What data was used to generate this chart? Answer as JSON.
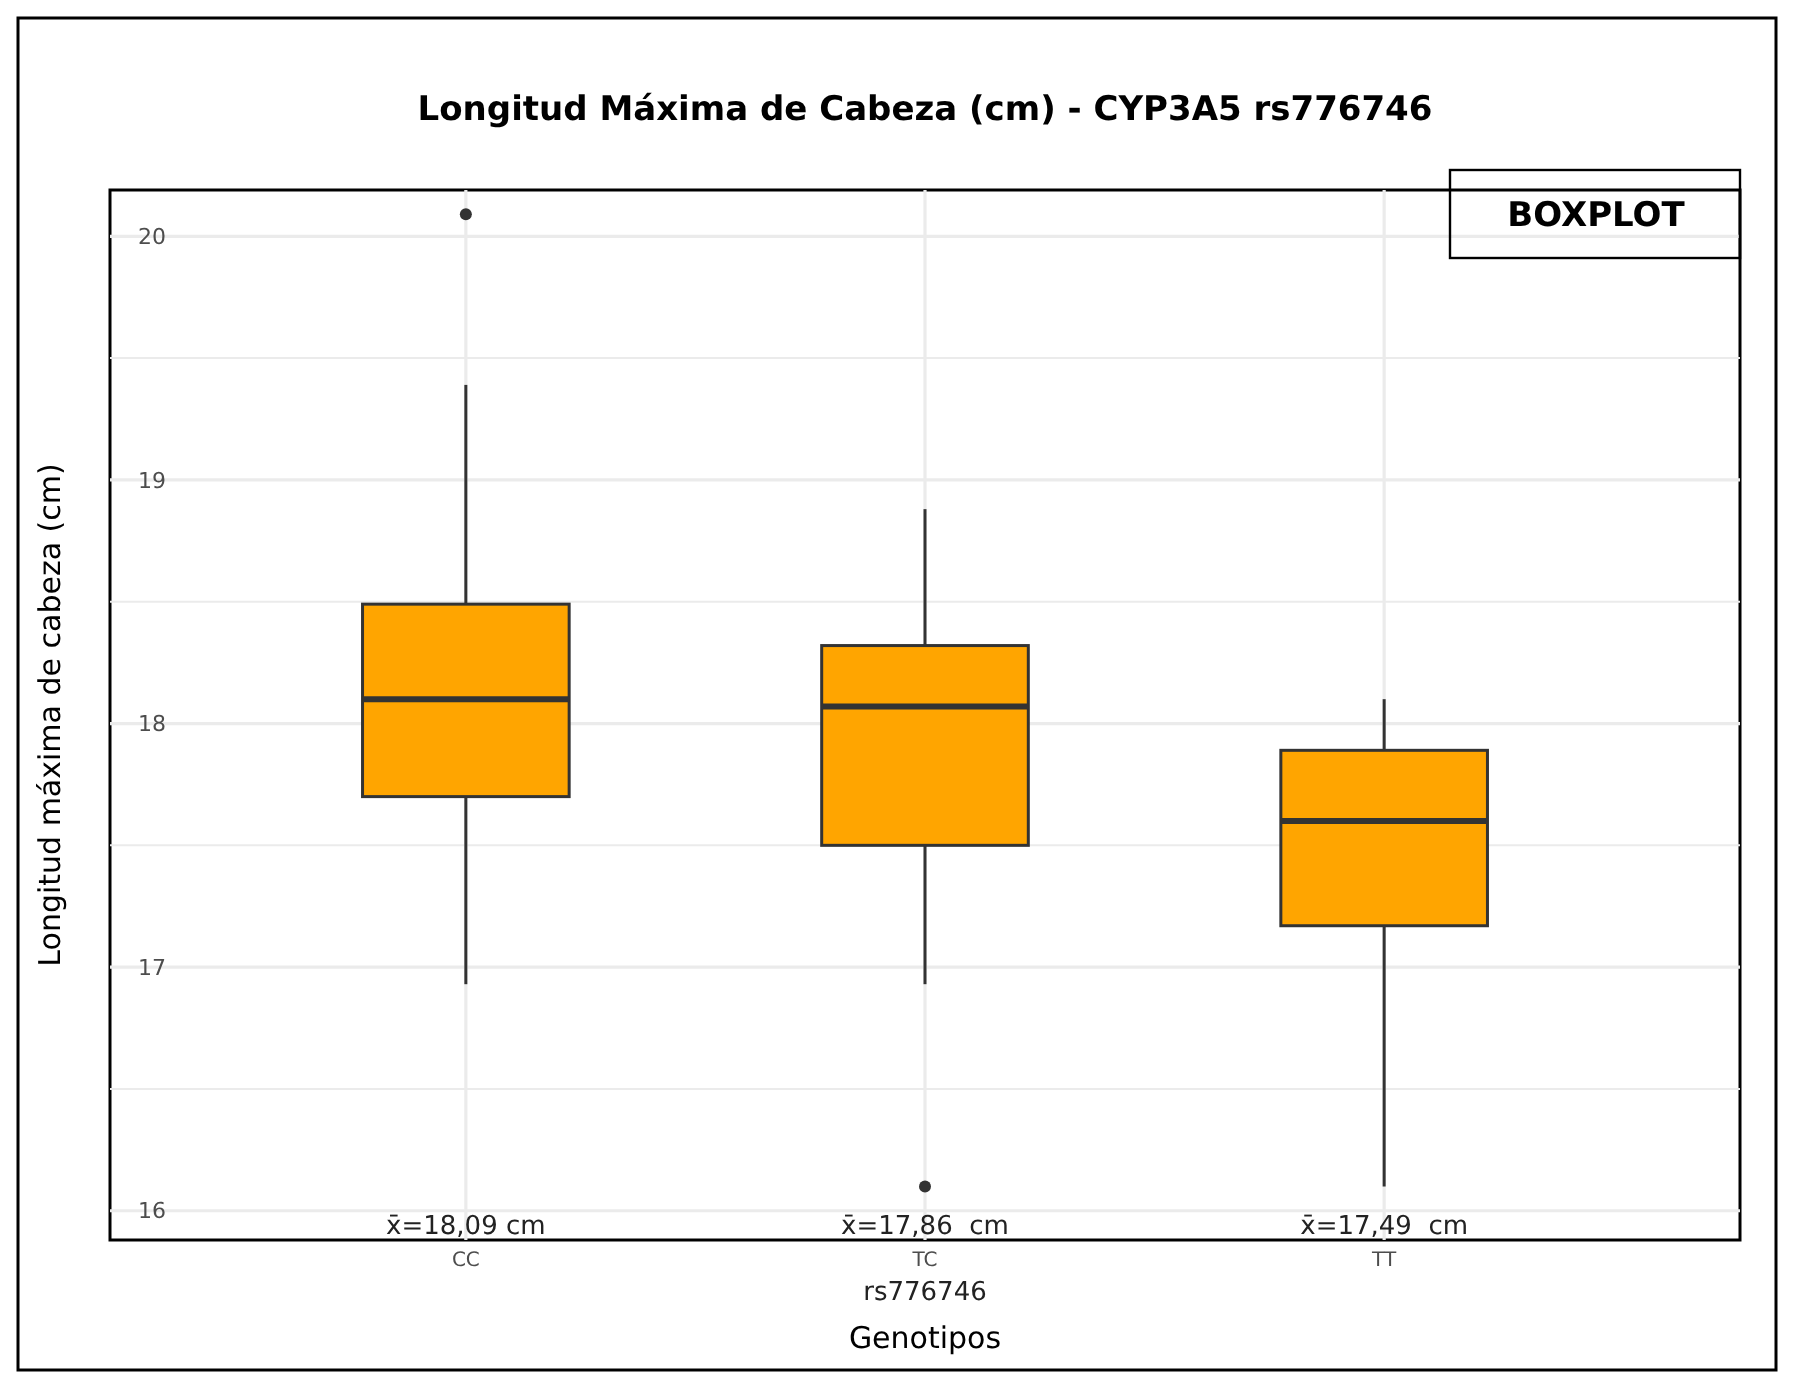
{
  "chart_data": {
    "type": "box",
    "title": "Longitud Máxima de Cabeza (cm) - CYP3A5 rs776746",
    "xlabel": "Genotipos",
    "ylabel": "Longitud máxima de cabeza (cm)",
    "categories": [
      "CC",
      "TC",
      "TT"
    ],
    "boxes": [
      {
        "low": 16.93,
        "q1": 17.7,
        "median": 18.1,
        "q3": 18.49,
        "high": 19.39,
        "outliers": [
          20.09
        ]
      },
      {
        "low": 16.93,
        "q1": 17.5,
        "median": 18.07,
        "q3": 18.32,
        "high": 18.88,
        "outliers": [
          16.1
        ]
      },
      {
        "low": 16.1,
        "q1": 17.17,
        "median": 17.6,
        "q3": 17.89,
        "high": 18.1
      }
    ],
    "color": "#ffa500",
    "ylim": [
      15.88,
      20.19
    ],
    "yticks": [
      16,
      {
        "value": 16.5,
        "label": null
      },
      17,
      {
        "value": 17.5,
        "label": null
      },
      18,
      {
        "value": 18.5,
        "label": null
      },
      19,
      {
        "value": 19.5,
        "label": null
      },
      20
    ],
    "grid": true,
    "annotations": [
      "x̄=18,09 cm",
      "x̄=17,86  cm",
      "x̄=17,49  cm",
      "rs776746",
      "BOXPLOT"
    ]
  }
}
